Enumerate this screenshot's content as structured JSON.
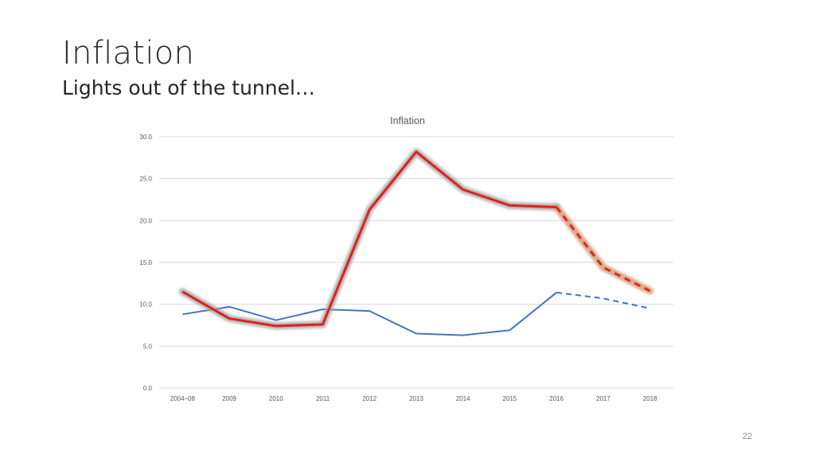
{
  "slide": {
    "title": "Inflation",
    "subtitle": "Lights out of the tunnel…",
    "page_number": "22"
  },
  "colors": {
    "blue_series": "#4472c4",
    "red_series": "#e0211b",
    "red_forecast": "#d9282a",
    "highlight_glow": "#a6a6a6",
    "forecast_glow": "#d9a07a",
    "gridline": "#d9d9d9",
    "axis_text": "#595959"
  },
  "chart_data": {
    "type": "line",
    "title": "Inflation",
    "categories": [
      "2004–08",
      "2009",
      "2010",
      "2011",
      "2012",
      "2013",
      "2014",
      "2015",
      "2016",
      "2017",
      "2018"
    ],
    "ylim": [
      0,
      30
    ],
    "yticks": [
      "0.0",
      "5.0",
      "10.0",
      "15.0",
      "20.0",
      "25.0",
      "30.0"
    ],
    "grid": true,
    "legend": "none",
    "series": [
      {
        "values": [
          8.8,
          9.7,
          8.1,
          9.4,
          9.2,
          6.5,
          6.3,
          6.9,
          11.4,
          10.7,
          9.5
        ],
        "actual_through_index": 8,
        "forecast_style": "dashed"
      },
      {
        "values": [
          11.5,
          8.3,
          7.4,
          7.6,
          21.3,
          28.2,
          23.7,
          21.8,
          21.6,
          14.4,
          11.6
        ],
        "actual_through_index": 8,
        "forecast_style": "dashed",
        "highlighted": true
      }
    ]
  }
}
